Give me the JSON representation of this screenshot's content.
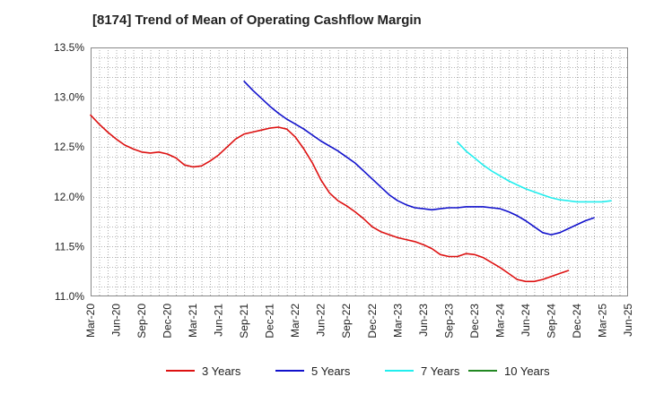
{
  "chart_data": {
    "type": "line",
    "title": "[8174]  Trend of Mean of Operating Cashflow Margin",
    "xlabel": "",
    "ylabel": "",
    "ylim": [
      11.0,
      13.5
    ],
    "yticks": [
      "11.0%",
      "11.5%",
      "12.0%",
      "12.5%",
      "13.0%",
      "13.5%"
    ],
    "ytick_values": [
      11.0,
      11.5,
      12.0,
      12.5,
      13.0,
      13.5
    ],
    "x_categories": [
      "Mar-20",
      "Jun-20",
      "Sep-20",
      "Dec-20",
      "Mar-21",
      "Jun-21",
      "Sep-21",
      "Dec-21",
      "Mar-22",
      "Jun-22",
      "Sep-22",
      "Dec-22",
      "Mar-23",
      "Jun-23",
      "Sep-23",
      "Dec-23",
      "Mar-24",
      "Jun-24",
      "Sep-24",
      "Dec-24",
      "Mar-25",
      "Jun-25"
    ],
    "grid": true,
    "legend_position": "bottom",
    "series": [
      {
        "name": "3 Years",
        "color": "#dd1111",
        "start_index": 0,
        "values": [
          12.82,
          12.73,
          12.65,
          12.58,
          12.52,
          12.48,
          12.45,
          12.44,
          12.45,
          12.43,
          12.39,
          12.32,
          12.3,
          12.31,
          12.36,
          12.42,
          12.5,
          12.58,
          12.63,
          12.65,
          12.67,
          12.69,
          12.7,
          12.68,
          12.6,
          12.48,
          12.34,
          12.17,
          12.04,
          11.96,
          11.91,
          11.85,
          11.78,
          11.7,
          11.65,
          11.62,
          11.59,
          11.57,
          11.55,
          11.52,
          11.48,
          11.42,
          11.4,
          11.4,
          11.43,
          11.42,
          11.39,
          11.34,
          11.29,
          11.23,
          11.17,
          11.15,
          11.15,
          11.17,
          11.2,
          11.23,
          11.26
        ]
      },
      {
        "name": "5 Years",
        "color": "#1111cc",
        "start_index": 18,
        "values": [
          13.16,
          13.07,
          12.99,
          12.91,
          12.84,
          12.78,
          12.73,
          12.68,
          12.62,
          12.56,
          12.51,
          12.46,
          12.4,
          12.34,
          12.26,
          12.18,
          12.1,
          12.02,
          11.96,
          11.92,
          11.89,
          11.88,
          11.87,
          11.88,
          11.89,
          11.89,
          11.9,
          11.9,
          11.9,
          11.89,
          11.88,
          11.85,
          11.81,
          11.76,
          11.7,
          11.64,
          11.62,
          11.64,
          11.68,
          11.72,
          11.76,
          11.79
        ]
      },
      {
        "name": "7 Years",
        "color": "#22eeee",
        "start_index": 43,
        "values": [
          12.55,
          12.46,
          12.39,
          12.32,
          12.26,
          12.21,
          12.16,
          12.12,
          12.08,
          12.05,
          12.02,
          11.99,
          11.97,
          11.96,
          11.95,
          11.95,
          11.95,
          11.95,
          11.96
        ]
      },
      {
        "name": "10 Years",
        "color": "#228822",
        "start_index": 0,
        "values": []
      }
    ]
  }
}
